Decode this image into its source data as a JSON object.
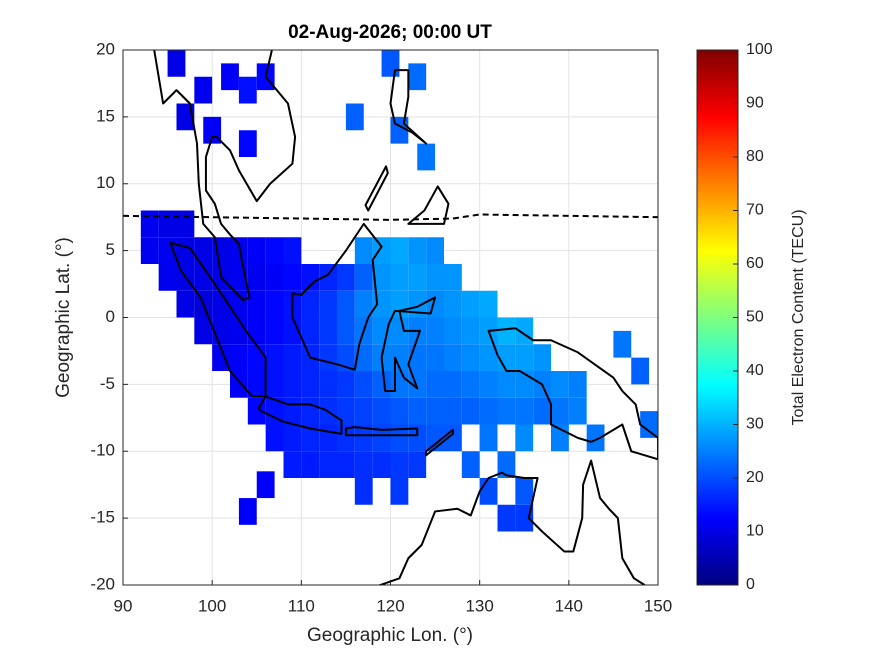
{
  "chart_data": {
    "type": "heatmap",
    "title": "02-Aug-2026; 00:00 UT",
    "x_label": "Geographic Lon. (°)",
    "y_label": "Geographic Lat. (°)",
    "xlim": [
      90,
      150
    ],
    "xticks": [
      90,
      100,
      110,
      120,
      130,
      140,
      150
    ],
    "ylim": [
      -20,
      20
    ],
    "yticks": [
      -20,
      -15,
      -10,
      -5,
      0,
      5,
      10,
      15,
      20
    ],
    "grid": true,
    "colorbar": {
      "label": "Total Electron Content (TECU)",
      "colormap": "jet",
      "lim": [
        0,
        100
      ],
      "ticks": [
        0,
        10,
        20,
        30,
        40,
        50,
        60,
        70,
        80,
        90,
        100
      ]
    },
    "x": [
      93,
      95,
      97,
      93,
      95,
      97,
      99,
      101,
      103,
      105,
      107,
      109,
      117,
      119,
      121,
      123,
      125,
      95,
      97,
      99,
      101,
      103,
      105,
      107,
      109,
      111,
      113,
      115,
      117,
      119,
      121,
      123,
      125,
      127,
      97,
      99,
      101,
      103,
      105,
      107,
      109,
      111,
      113,
      115,
      117,
      119,
      121,
      123,
      125,
      127,
      129,
      131,
      99,
      101,
      103,
      105,
      107,
      109,
      111,
      113,
      115,
      117,
      119,
      121,
      123,
      125,
      127,
      129,
      131,
      133,
      135,
      101,
      103,
      105,
      107,
      109,
      111,
      113,
      115,
      117,
      119,
      121,
      123,
      125,
      127,
      129,
      131,
      133,
      135,
      137,
      103,
      105,
      107,
      109,
      111,
      113,
      115,
      117,
      119,
      121,
      123,
      125,
      127,
      129,
      131,
      133,
      135,
      137,
      139,
      141,
      105,
      107,
      109,
      111,
      113,
      115,
      117,
      119,
      121,
      123,
      125,
      127,
      129,
      131,
      133,
      135,
      137,
      139,
      141,
      107,
      109,
      111,
      113,
      115,
      117,
      119,
      121,
      123,
      125,
      127,
      131,
      135,
      139,
      143,
      109,
      111,
      113,
      115,
      117,
      119,
      121,
      123,
      129,
      133,
      117,
      121,
      131,
      135,
      133,
      135,
      96,
      99,
      102,
      104,
      100,
      97,
      106,
      104,
      120,
      123,
      116,
      121,
      124,
      104,
      106,
      146,
      148,
      149
    ],
    "y": [
      7,
      7,
      7,
      5,
      5,
      5,
      5,
      5,
      5,
      5,
      5,
      5,
      5,
      5,
      5,
      5,
      5,
      3,
      3,
      3,
      3,
      3,
      3,
      3,
      3,
      3,
      3,
      3,
      3,
      3,
      3,
      3,
      3,
      3,
      1,
      1,
      1,
      1,
      1,
      1,
      1,
      1,
      1,
      1,
      1,
      1,
      1,
      1,
      1,
      1,
      1,
      1,
      -1,
      -1,
      -1,
      -1,
      -1,
      -1,
      -1,
      -1,
      -1,
      -1,
      -1,
      -1,
      -1,
      -1,
      -1,
      -1,
      -1,
      -1,
      -1,
      -3,
      -3,
      -3,
      -3,
      -3,
      -3,
      -3,
      -3,
      -3,
      -3,
      -3,
      -3,
      -3,
      -3,
      -3,
      -3,
      -3,
      -3,
      -3,
      -5,
      -5,
      -5,
      -5,
      -5,
      -5,
      -5,
      -5,
      -5,
      -5,
      -5,
      -5,
      -5,
      -5,
      -5,
      -5,
      -5,
      -5,
      -5,
      -5,
      -7,
      -7,
      -7,
      -7,
      -7,
      -7,
      -7,
      -7,
      -7,
      -7,
      -7,
      -7,
      -7,
      -7,
      -7,
      -7,
      -7,
      -7,
      -7,
      -9,
      -9,
      -9,
      -9,
      -9,
      -9,
      -9,
      -9,
      -9,
      -9,
      -9,
      -9,
      -9,
      -9,
      -9,
      -11,
      -11,
      -11,
      -11,
      -11,
      -11,
      -11,
      -11,
      -11,
      -11,
      -13,
      -13,
      -13,
      -13,
      -15,
      -15,
      19,
      17,
      18,
      17,
      14,
      15,
      18,
      13,
      19,
      18,
      15,
      14,
      12,
      -14.5,
      -12.5,
      -2,
      -4,
      -8
    ],
    "values": [
      11,
      10,
      10,
      11,
      11,
      10,
      10,
      10,
      11,
      12,
      13,
      14,
      26,
      28,
      29,
      27,
      26,
      11,
      10,
      10,
      10,
      11,
      11,
      12,
      13,
      14,
      16,
      18,
      22,
      27,
      28,
      28,
      27,
      27,
      10,
      9,
      10,
      11,
      12,
      13,
      14,
      16,
      18,
      21,
      25,
      27,
      28,
      27,
      26,
      27,
      28,
      29,
      10,
      10,
      11,
      12,
      13,
      14,
      16,
      18,
      21,
      24,
      26,
      26,
      25,
      25,
      26,
      27,
      28,
      30,
      29,
      11,
      12,
      13,
      14,
      15,
      16,
      18,
      20,
      23,
      25,
      25,
      24,
      24,
      25,
      26,
      27,
      28,
      28,
      27,
      12,
      13,
      14,
      15,
      16,
      17,
      18,
      20,
      22,
      24,
      24,
      23,
      23,
      24,
      25,
      26,
      26,
      25,
      26,
      25,
      13,
      14,
      15,
      16,
      17,
      18,
      19,
      20,
      21,
      22,
      22,
      22,
      22,
      23,
      24,
      24,
      23,
      24,
      25,
      14,
      15,
      16,
      16,
      17,
      18,
      19,
      20,
      20,
      21,
      21,
      24,
      26,
      25,
      24,
      15,
      15,
      16,
      16,
      17,
      17,
      18,
      18,
      22,
      23,
      17,
      18,
      20,
      21,
      18,
      18,
      10,
      11,
      12,
      14,
      12,
      10,
      13,
      13,
      21,
      23,
      22,
      22,
      24,
      12,
      12,
      24,
      22,
      23
    ]
  }
}
